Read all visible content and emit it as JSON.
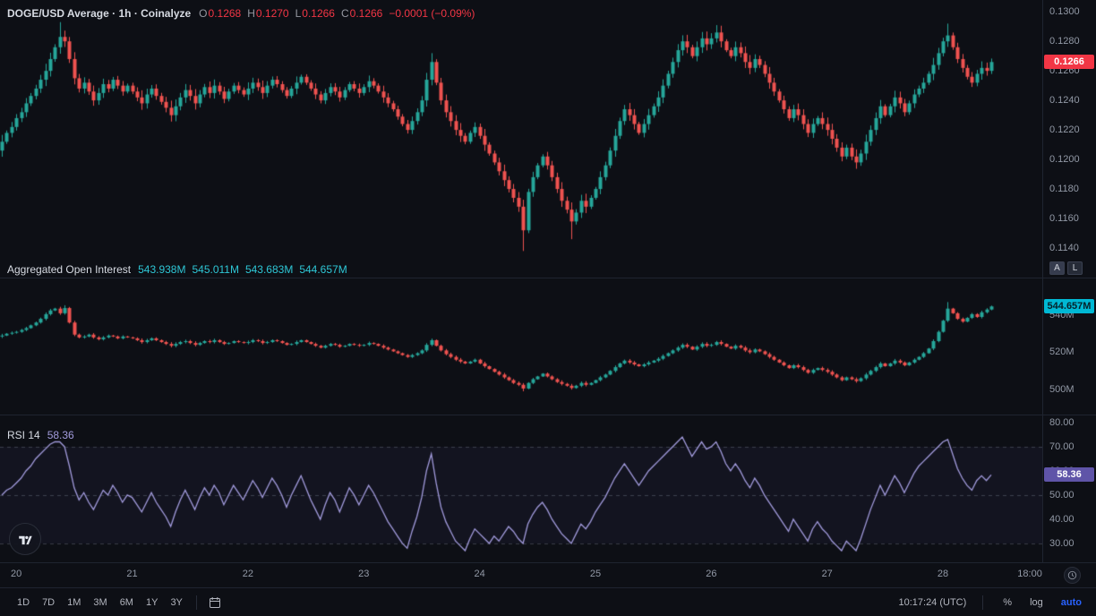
{
  "header": {
    "title": "DOGE/USD Average · 1h · Coinalyze",
    "ohlc": {
      "o_label": "O",
      "o": "0.1268",
      "h_label": "H",
      "h": "0.1270",
      "l_label": "L",
      "l": "0.1266",
      "c_label": "C",
      "c": "0.1266",
      "change": "−0.0001 (−0.09%)"
    }
  },
  "oi_legend": {
    "title": "Aggregated Open Interest",
    "o": "543.938M",
    "h": "545.011M",
    "l": "543.683M",
    "c": "544.657M"
  },
  "rsi_legend": {
    "title": "RSI 14",
    "value": "58.36"
  },
  "axes": {
    "price": {
      "range": {
        "top": 0.1308,
        "bottom": 0.112
      },
      "ticks": [
        {
          "v": 0.13,
          "label": "0.1300"
        },
        {
          "v": 0.128,
          "label": "0.1280"
        },
        {
          "v": 0.126,
          "label": "0.1260"
        },
        {
          "v": 0.124,
          "label": "0.1240"
        },
        {
          "v": 0.122,
          "label": "0.1220"
        },
        {
          "v": 0.12,
          "label": "0.1200"
        },
        {
          "v": 0.118,
          "label": "0.1180"
        },
        {
          "v": 0.116,
          "label": "0.1160"
        },
        {
          "v": 0.114,
          "label": "0.1140"
        }
      ],
      "badge": {
        "v": 0.1266,
        "label": "0.1266"
      }
    },
    "oi": {
      "range": {
        "top": 560.2,
        "bottom": 486.5
      },
      "ticks": [
        {
          "v": 540,
          "label": "540M"
        },
        {
          "v": 520,
          "label": "520M"
        },
        {
          "v": 500,
          "label": "500M"
        }
      ],
      "badge": {
        "v": 544.657,
        "label": "544.657M"
      }
    },
    "rsi": {
      "range": {
        "top": 83.3,
        "bottom": 22.2
      },
      "ticks": [
        {
          "v": 80,
          "label": "80.00"
        },
        {
          "v": 70,
          "label": "70.00"
        },
        {
          "v": 60,
          "label": "60.00"
        },
        {
          "v": 50,
          "label": "50.00"
        },
        {
          "v": 40,
          "label": "40.00"
        },
        {
          "v": 30,
          "label": "30.00"
        }
      ],
      "badge": {
        "v": 58.36,
        "label": "58.36"
      }
    }
  },
  "scale_buttons": {
    "auto": "A",
    "log": "L"
  },
  "time_axis": {
    "labels": [
      {
        "i": 3,
        "label": "20"
      },
      {
        "i": 27,
        "label": "21"
      },
      {
        "i": 51,
        "label": "22"
      },
      {
        "i": 75,
        "label": "23"
      },
      {
        "i": 99,
        "label": "24"
      },
      {
        "i": 123,
        "label": "25"
      },
      {
        "i": 147,
        "label": "26"
      },
      {
        "i": 171,
        "label": "27"
      },
      {
        "i": 195,
        "label": "28"
      },
      {
        "i": 213,
        "label": "18:00"
      }
    ]
  },
  "toolbar": {
    "ranges": [
      "1D",
      "7D",
      "1M",
      "3M",
      "6M",
      "1Y",
      "3Y"
    ],
    "clock": "10:17:24 (UTC)",
    "percent_label": "%",
    "log_label": "log",
    "auto_label": "auto"
  },
  "colors": {
    "up": "#26a69a",
    "down": "#ef5350",
    "rsi_line": "#a29bdc",
    "price_badge": "#f23645",
    "oi_badge": "#00b8d4",
    "rsi_badge": "#5f54a8",
    "accent_blue": "#2962ff"
  },
  "chart_data": [
    {
      "type": "candlestick",
      "name": "DOGE/USD Average",
      "timeframe": "1h",
      "candles_per_day": 24,
      "x_day_labels": [
        "20",
        "21",
        "22",
        "23",
        "24",
        "25",
        "26",
        "27",
        "28"
      ],
      "ylim": [
        0.112,
        0.1308
      ],
      "first_open": 0.1206,
      "closes": [
        0.1212,
        0.1218,
        0.1222,
        0.1228,
        0.1232,
        0.1238,
        0.1243,
        0.1248,
        0.1254,
        0.126,
        0.1268,
        0.1276,
        0.1283,
        0.128,
        0.1268,
        0.1255,
        0.1248,
        0.1252,
        0.1246,
        0.124,
        0.1245,
        0.1251,
        0.1248,
        0.1254,
        0.125,
        0.1246,
        0.125,
        0.1246,
        0.1242,
        0.1238,
        0.1244,
        0.1248,
        0.1243,
        0.1239,
        0.1235,
        0.123,
        0.1236,
        0.1242,
        0.1247,
        0.1243,
        0.1238,
        0.1244,
        0.1249,
        0.1245,
        0.125,
        0.1246,
        0.1241,
        0.1246,
        0.125,
        0.1247,
        0.1244,
        0.1248,
        0.1252,
        0.1249,
        0.1245,
        0.125,
        0.1254,
        0.1251,
        0.1247,
        0.1243,
        0.1248,
        0.1252,
        0.1256,
        0.1252,
        0.1248,
        0.1244,
        0.124,
        0.1245,
        0.1249,
        0.1246,
        0.1242,
        0.1247,
        0.1251,
        0.1248,
        0.1245,
        0.1249,
        0.1253,
        0.125,
        0.1246,
        0.1242,
        0.1238,
        0.1234,
        0.1229,
        0.1224,
        0.122,
        0.1226,
        0.1232,
        0.124,
        0.1254,
        0.1266,
        0.1252,
        0.124,
        0.1232,
        0.1226,
        0.122,
        0.1216,
        0.1212,
        0.1218,
        0.1222,
        0.1216,
        0.121,
        0.1204,
        0.1198,
        0.1192,
        0.1186,
        0.118,
        0.1174,
        0.1168,
        0.1152,
        0.1178,
        0.1188,
        0.1196,
        0.1202,
        0.1196,
        0.1188,
        0.118,
        0.1172,
        0.1166,
        0.1158,
        0.1164,
        0.1172,
        0.1168,
        0.1174,
        0.118,
        0.1188,
        0.1196,
        0.1206,
        0.1216,
        0.1226,
        0.1234,
        0.123,
        0.1224,
        0.1218,
        0.1224,
        0.123,
        0.1236,
        0.1242,
        0.125,
        0.1258,
        0.1266,
        0.1274,
        0.128,
        0.1276,
        0.127,
        0.1276,
        0.1282,
        0.1278,
        0.1282,
        0.1286,
        0.128,
        0.1274,
        0.127,
        0.1276,
        0.1272,
        0.1266,
        0.1262,
        0.1268,
        0.1264,
        0.1258,
        0.1252,
        0.1246,
        0.124,
        0.1234,
        0.1228,
        0.1234,
        0.123,
        0.1224,
        0.1218,
        0.1224,
        0.1228,
        0.1224,
        0.122,
        0.1214,
        0.1208,
        0.1202,
        0.1208,
        0.1202,
        0.1198,
        0.1204,
        0.1212,
        0.122,
        0.1228,
        0.1236,
        0.123,
        0.1236,
        0.1242,
        0.1238,
        0.1232,
        0.1238,
        0.1244,
        0.1248,
        0.1252,
        0.1258,
        0.1264,
        0.1272,
        0.128,
        0.1284,
        0.1276,
        0.1268,
        0.1262,
        0.1256,
        0.1252,
        0.1258,
        0.1262,
        0.126,
        0.1266
      ],
      "spikes": [
        {
          "i": 12,
          "high": 0.1293
        },
        {
          "i": 89,
          "high": 0.1272
        },
        {
          "i": 108,
          "low": 0.1138
        },
        {
          "i": 118,
          "low": 0.1146
        },
        {
          "i": 148,
          "high": 0.1291
        },
        {
          "i": 196,
          "high": 0.1292
        }
      ]
    },
    {
      "type": "candlestick",
      "name": "Aggregated Open Interest",
      "unit": "M",
      "ylim": [
        486.5,
        560.2
      ],
      "first_open": 528.5,
      "closes": [
        529.0,
        530.0,
        530.5,
        531.0,
        532.0,
        533.0,
        534.5,
        536.0,
        538.0,
        540.5,
        542.5,
        543.5,
        541.0,
        543.8,
        536.0,
        529.5,
        528.0,
        528.5,
        529.5,
        528.0,
        527.0,
        528.0,
        529.0,
        528.5,
        527.5,
        528.5,
        528.0,
        527.5,
        526.5,
        525.5,
        526.5,
        527.5,
        526.5,
        525.5,
        524.5,
        523.5,
        524.5,
        525.5,
        526.0,
        525.0,
        524.0,
        525.0,
        526.0,
        525.5,
        526.5,
        525.5,
        524.5,
        525.0,
        526.0,
        525.5,
        525.0,
        525.5,
        526.5,
        526.0,
        525.0,
        525.5,
        526.5,
        526.0,
        525.0,
        524.0,
        524.5,
        525.5,
        526.5,
        525.5,
        524.5,
        523.5,
        522.5,
        523.5,
        524.5,
        524.0,
        523.0,
        523.5,
        524.5,
        524.0,
        523.5,
        524.0,
        525.0,
        524.5,
        523.5,
        522.5,
        521.5,
        520.5,
        519.5,
        518.5,
        517.5,
        518.5,
        519.5,
        521.0,
        524.0,
        526.5,
        523.5,
        521.0,
        519.0,
        517.5,
        516.0,
        515.0,
        514.0,
        515.0,
        516.0,
        514.0,
        512.5,
        511.0,
        509.5,
        508.0,
        506.5,
        505.0,
        503.5,
        502.5,
        500.5,
        503.5,
        505.5,
        507.0,
        508.5,
        507.0,
        505.5,
        504.0,
        503.0,
        502.0,
        500.8,
        502.0,
        503.5,
        502.5,
        503.5,
        505.0,
        506.5,
        508.0,
        510.0,
        512.0,
        514.0,
        515.5,
        514.5,
        513.5,
        512.5,
        513.5,
        514.5,
        515.5,
        516.5,
        518.0,
        519.5,
        521.0,
        522.5,
        524.0,
        523.0,
        521.5,
        523.0,
        524.5,
        523.5,
        524.0,
        525.5,
        524.5,
        523.0,
        522.0,
        523.5,
        522.5,
        521.0,
        520.0,
        521.5,
        520.5,
        519.0,
        517.5,
        516.0,
        514.5,
        513.0,
        511.5,
        513.0,
        512.0,
        510.5,
        509.0,
        510.5,
        511.5,
        510.5,
        509.5,
        508.0,
        506.5,
        505.0,
        506.5,
        505.5,
        504.5,
        506.0,
        508.0,
        510.0,
        512.0,
        514.0,
        512.5,
        514.0,
        515.5,
        514.5,
        513.0,
        514.5,
        516.0,
        517.5,
        519.5,
        522.0,
        526.0,
        531.0,
        537.0,
        543.5,
        541.0,
        538.0,
        536.5,
        538.5,
        540.5,
        539.0,
        541.5,
        543.0,
        544.657
      ],
      "spikes": [
        {
          "i": 13,
          "high": 545.3
        },
        {
          "i": 108,
          "low": 499.0
        },
        {
          "i": 196,
          "high": 547.0
        }
      ]
    },
    {
      "type": "line",
      "name": "RSI 14",
      "ylim": [
        22.2,
        83.3
      ],
      "levels": [
        70,
        50,
        30
      ],
      "values": [
        50,
        52,
        53,
        55,
        57,
        60,
        62,
        65,
        67,
        69,
        71,
        72,
        72,
        70,
        62,
        53,
        48,
        51,
        47,
        44,
        48,
        52,
        50,
        54,
        51,
        47,
        50,
        49,
        46,
        43,
        47,
        51,
        47,
        44,
        41,
        37,
        43,
        48,
        52,
        48,
        44,
        49,
        53,
        50,
        54,
        51,
        46,
        50,
        54,
        51,
        48,
        52,
        56,
        53,
        49,
        53,
        57,
        54,
        50,
        45,
        50,
        54,
        58,
        53,
        48,
        44,
        40,
        46,
        51,
        48,
        43,
        48,
        53,
        50,
        46,
        50,
        54,
        51,
        47,
        43,
        39,
        36,
        33,
        30,
        28,
        35,
        41,
        49,
        60,
        67,
        55,
        45,
        39,
        35,
        31,
        29,
        27,
        32,
        36,
        34,
        32,
        30,
        33,
        31,
        34,
        37,
        35,
        32,
        30,
        38,
        42,
        45,
        47,
        44,
        40,
        37,
        34,
        32,
        30,
        34,
        38,
        36,
        39,
        43,
        46,
        49,
        53,
        57,
        60,
        63,
        60,
        57,
        54,
        57,
        60,
        62,
        64,
        66,
        68,
        70,
        72,
        74,
        70,
        66,
        69,
        72,
        69,
        70,
        72,
        68,
        63,
        60,
        63,
        60,
        56,
        53,
        57,
        54,
        50,
        47,
        44,
        41,
        38,
        35,
        40,
        37,
        34,
        31,
        36,
        39,
        36,
        34,
        31,
        29,
        27,
        31,
        29,
        27,
        32,
        38,
        44,
        49,
        54,
        50,
        54,
        58,
        55,
        51,
        55,
        59,
        62,
        64,
        66,
        68,
        70,
        72,
        73,
        67,
        61,
        57,
        54,
        52,
        56,
        58,
        56,
        58.36
      ]
    }
  ]
}
